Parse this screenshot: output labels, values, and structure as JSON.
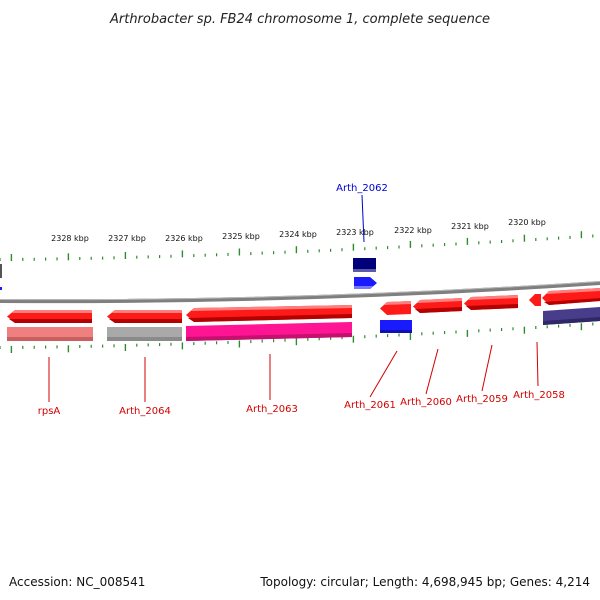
{
  "title": "Arthrobacter sp. FB24 chromosome 1, complete sequence",
  "footer": {
    "accession": "Accession: NC_008541",
    "summary": "Topology: circular; Length: 4,698,945 bp; Genes: 4,214"
  },
  "colors": {
    "background": "#ffffff",
    "backbone": "#808080",
    "tick": "#2e8b2e",
    "label_red": "#d40000",
    "label_blue": "#0000cc",
    "gene_red": "#ff1a1a",
    "gene_blue": "#1a1aff",
    "gene_navy": "#00007a",
    "gene_pink": "#ff1493",
    "gene_salmon": "#f08080",
    "gene_gray": "#a9a9a9",
    "gene_slate": "#483d8b"
  },
  "kbp_labels": [
    "2328 kbp",
    "2327 kbp",
    "2326 kbp",
    "2325 kbp",
    "2324 kbp",
    "2323 kbp",
    "2322 kbp",
    "2321 kbp",
    "2320 kbp"
  ],
  "gene_labels": [
    {
      "id": "rpsA",
      "text": "rpsA",
      "color": "red"
    },
    {
      "id": "arth-2064",
      "text": "Arth_2064",
      "color": "red"
    },
    {
      "id": "arth-2063",
      "text": "Arth_2063",
      "color": "red"
    },
    {
      "id": "arth-2062",
      "text": "Arth_2062",
      "color": "blue"
    },
    {
      "id": "arth-2061",
      "text": "Arth_2061",
      "color": "red"
    },
    {
      "id": "arth-2060",
      "text": "Arth_2060",
      "color": "red"
    },
    {
      "id": "arth-2059",
      "text": "Arth_2059",
      "color": "red"
    },
    {
      "id": "arth-2058",
      "text": "Arth_2058",
      "color": "red"
    }
  ]
}
